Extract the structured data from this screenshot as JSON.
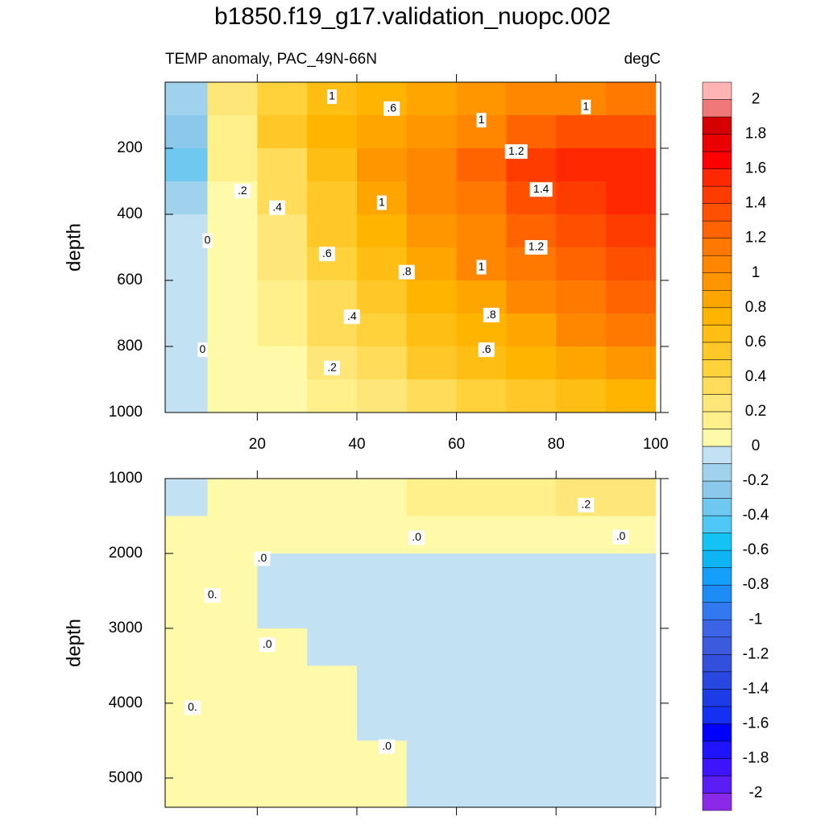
{
  "chart_data": {
    "type": "contour",
    "title": "b1850.f19_g17.validation_nuopc.002",
    "subtitle_left": "TEMP anomaly, PAC_49N-66N",
    "subtitle_right": "degC",
    "panels": [
      {
        "y_label": "depth",
        "xlim": [
          1.5,
          101
        ],
        "xticks": [
          20,
          40,
          60,
          80,
          100
        ],
        "show_xtick_labels": true,
        "ylim": [
          0,
          1000
        ],
        "yticks": [
          200,
          400,
          600,
          800,
          1000
        ],
        "x": [
          5,
          15,
          25,
          35,
          45,
          55,
          65,
          75,
          85,
          95
        ],
        "depth": [
          50,
          150,
          250,
          350,
          450,
          550,
          650,
          750,
          850,
          950
        ],
        "z": [
          [
            -0.2,
            0.2,
            0.4,
            0.6,
            0.7,
            0.8,
            0.9,
            1.0,
            1.0,
            1.1
          ],
          [
            -0.3,
            0.1,
            0.5,
            0.7,
            0.8,
            0.9,
            1.0,
            1.2,
            1.3,
            1.3
          ],
          [
            -0.4,
            0.1,
            0.3,
            0.6,
            0.9,
            1.0,
            1.2,
            1.4,
            1.5,
            1.5
          ],
          [
            -0.2,
            0.05,
            0.3,
            0.5,
            0.8,
            1.0,
            1.1,
            1.3,
            1.4,
            1.5
          ],
          [
            -0.05,
            0.05,
            0.2,
            0.5,
            0.7,
            0.9,
            1.0,
            1.2,
            1.3,
            1.4
          ],
          [
            -0.05,
            0.05,
            0.2,
            0.4,
            0.6,
            0.8,
            1.0,
            1.1,
            1.2,
            1.3
          ],
          [
            -0.05,
            0.05,
            0.1,
            0.3,
            0.5,
            0.7,
            0.8,
            1.0,
            1.1,
            1.2
          ],
          [
            -0.05,
            0.05,
            0.1,
            0.3,
            0.4,
            0.6,
            0.7,
            0.8,
            1.0,
            1.1
          ],
          [
            -0.05,
            0.05,
            0.05,
            0.2,
            0.3,
            0.5,
            0.6,
            0.7,
            0.8,
            0.9
          ],
          [
            -0.05,
            0.05,
            0.05,
            0.1,
            0.2,
            0.3,
            0.4,
            0.5,
            0.6,
            0.7
          ]
        ],
        "contour_labels": [
          {
            "text": "1",
            "x": 35,
            "depth": 44
          },
          {
            "text": ".6",
            "x": 47,
            "depth": 80
          },
          {
            "text": "1",
            "x": 65,
            "depth": 115
          },
          {
            "text": "1",
            "x": 86,
            "depth": 75
          },
          {
            "text": "1.2",
            "x": 72,
            "depth": 210
          },
          {
            "text": ".2",
            "x": 17,
            "depth": 330
          },
          {
            "text": ".4",
            "x": 24,
            "depth": 380
          },
          {
            "text": "1",
            "x": 45,
            "depth": 365
          },
          {
            "text": "1.4",
            "x": 77,
            "depth": 325
          },
          {
            "text": "0",
            "x": 10,
            "depth": 480
          },
          {
            "text": ".6",
            "x": 34,
            "depth": 520
          },
          {
            "text": "1.2",
            "x": 76,
            "depth": 500
          },
          {
            "text": "1",
            "x": 65,
            "depth": 560
          },
          {
            "text": ".8",
            "x": 50,
            "depth": 575
          },
          {
            "text": ".4",
            "x": 39,
            "depth": 710
          },
          {
            "text": ".8",
            "x": 67,
            "depth": 705
          },
          {
            "text": ".6",
            "x": 66,
            "depth": 810
          },
          {
            "text": "0",
            "x": 9,
            "depth": 810
          },
          {
            "text": ".2",
            "x": 35,
            "depth": 865
          }
        ]
      },
      {
        "y_label": "depth",
        "xlim": [
          1.5,
          101
        ],
        "xticks": [
          20,
          40,
          60,
          80,
          100
        ],
        "show_xtick_labels": false,
        "ylim": [
          1000,
          5390
        ],
        "yticks": [
          1000,
          2000,
          3000,
          4000,
          5000
        ],
        "x": [
          5,
          15,
          25,
          35,
          45,
          55,
          65,
          75,
          85,
          95
        ],
        "depth": [
          1250,
          1750,
          2250,
          2750,
          3250,
          3750,
          4250,
          4750,
          5250
        ],
        "z": [
          [
            -0.05,
            0.05,
            0.05,
            0.05,
            0.05,
            0.1,
            0.1,
            0.15,
            0.2,
            0.25
          ],
          [
            0.05,
            0.05,
            0.05,
            0.05,
            0.05,
            0.05,
            0.05,
            0.05,
            0.05,
            0.05
          ],
          [
            0.05,
            0.05,
            -0.05,
            -0.05,
            -0.05,
            -0.05,
            -0.05,
            -0.05,
            -0.05,
            -0.05
          ],
          [
            0.05,
            0.05,
            -0.05,
            -0.05,
            -0.05,
            -0.05,
            -0.05,
            -0.05,
            -0.05,
            -0.05
          ],
          [
            0.05,
            0.05,
            0.05,
            -0.05,
            -0.05,
            -0.05,
            -0.05,
            -0.05,
            -0.05,
            -0.05
          ],
          [
            0.05,
            0.05,
            0.05,
            0.05,
            -0.05,
            -0.05,
            -0.05,
            -0.05,
            -0.05,
            -0.05
          ],
          [
            0.05,
            0.05,
            0.05,
            0.05,
            -0.05,
            -0.05,
            -0.05,
            -0.05,
            -0.05,
            -0.05
          ],
          [
            0.05,
            0.05,
            0.05,
            0.05,
            0.05,
            -0.05,
            -0.05,
            -0.05,
            -0.05,
            -0.05
          ],
          [
            0.05,
            0.05,
            0.05,
            0.05,
            0.05,
            -0.05,
            -0.05,
            -0.05,
            -0.05,
            -0.05
          ]
        ],
        "contour_labels": [
          {
            "text": ".2",
            "x": 86,
            "depth": 1355
          },
          {
            "text": ".0",
            "x": 52,
            "depth": 1790
          },
          {
            "text": ".0",
            "x": 93,
            "depth": 1780
          },
          {
            "text": ".0",
            "x": 21,
            "depth": 2070
          },
          {
            "text": "0.",
            "x": 11,
            "depth": 2560
          },
          {
            "text": ".0",
            "x": 22,
            "depth": 3220
          },
          {
            "text": "0.",
            "x": 7,
            "depth": 4060
          },
          {
            "text": ".0",
            "x": 46,
            "depth": 4580
          }
        ]
      }
    ],
    "colorbar": {
      "levels": [
        -2,
        -1.9,
        -1.8,
        -1.7,
        -1.6,
        -1.5,
        -1.4,
        -1.3,
        -1.2,
        -1.1,
        -1,
        -0.9,
        -0.8,
        -0.7,
        -0.6,
        -0.5,
        -0.4,
        -0.3,
        -0.2,
        -0.1,
        0,
        0.1,
        0.2,
        0.3,
        0.4,
        0.5,
        0.6,
        0.7,
        0.8,
        0.9,
        1,
        1.1,
        1.2,
        1.3,
        1.4,
        1.5,
        1.6,
        1.7,
        1.8,
        1.9,
        2
      ],
      "colors": [
        "#8a2ae8",
        "#5a1ef5",
        "#3c14ff",
        "#1e14ff",
        "#0000ff",
        "#1430f0",
        "#1e3ce6",
        "#2846e0",
        "#3250dc",
        "#3c5adc",
        "#3c64e6",
        "#3278f0",
        "#1e8cf5",
        "#14a0fa",
        "#0fb4f5",
        "#14c3f5",
        "#50c8f5",
        "#6ec8f0",
        "#8cc8eb",
        "#a0d2ee",
        "#c2e2f3",
        "#fffaaa",
        "#fff08c",
        "#ffe678",
        "#ffdc5a",
        "#ffd23c",
        "#ffc828",
        "#ffbe14",
        "#ffb400",
        "#ffa500",
        "#ff9600",
        "#ff8700",
        "#ff7800",
        "#ff6400",
        "#ff5000",
        "#ff3c00",
        "#ff2800",
        "#ff0000",
        "#eb0000",
        "#d70000",
        "#f07878",
        "#ffb4b4"
      ],
      "ticks": [
        -2,
        -1.8,
        -1.6,
        -1.4,
        -1.2,
        -1,
        -0.8,
        -0.6,
        -0.4,
        -0.2,
        0,
        0.2,
        0.4,
        0.6,
        0.8,
        1,
        1.2,
        1.4,
        1.6,
        1.8,
        2
      ]
    }
  }
}
